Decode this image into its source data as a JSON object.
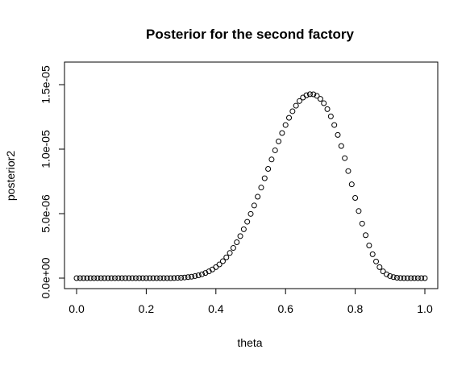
{
  "chart_data": {
    "type": "scatter",
    "title": "Posterior for the second factory",
    "xlabel": "theta",
    "ylabel": "posterior2",
    "xlim": [
      0.0,
      1.0
    ],
    "ylim": [
      0.0,
      1.55e-05
    ],
    "x_ticks": [
      0.0,
      0.2,
      0.4,
      0.6,
      0.8,
      1.0
    ],
    "x_tick_labels": [
      "0.0",
      "0.2",
      "0.4",
      "0.6",
      "0.8",
      "1.0"
    ],
    "y_ticks": [
      0.0,
      5e-06,
      1e-05,
      1.5e-05
    ],
    "y_tick_labels": [
      "0.0e+00",
      "5.0e-06",
      "1.0e-05",
      "1.5e-05"
    ],
    "series": [
      {
        "x": [
          0.0,
          0.01,
          0.02,
          0.03,
          0.04,
          0.05,
          0.06,
          0.07,
          0.08,
          0.09,
          0.1,
          0.11,
          0.12,
          0.13,
          0.14,
          0.15,
          0.16,
          0.17,
          0.18,
          0.19,
          0.2,
          0.21,
          0.22,
          0.23,
          0.24,
          0.25,
          0.26,
          0.27,
          0.28,
          0.29,
          0.3,
          0.31,
          0.32,
          0.33,
          0.34,
          0.35,
          0.36,
          0.37,
          0.38,
          0.39,
          0.4,
          0.41,
          0.42,
          0.43,
          0.44,
          0.45,
          0.46,
          0.47,
          0.48,
          0.49,
          0.5,
          0.51,
          0.52,
          0.53,
          0.54,
          0.55,
          0.56,
          0.57,
          0.58,
          0.59,
          0.6,
          0.61,
          0.62,
          0.63,
          0.64,
          0.65,
          0.66,
          0.67,
          0.68,
          0.69,
          0.7,
          0.71,
          0.72,
          0.73,
          0.74,
          0.75,
          0.76,
          0.77,
          0.78,
          0.79,
          0.8,
          0.81,
          0.82,
          0.83,
          0.84,
          0.85,
          0.86,
          0.87,
          0.88,
          0.89,
          0.9,
          0.91,
          0.92,
          0.93,
          0.94,
          0.95,
          0.96,
          0.97,
          0.98,
          0.99,
          1.0
        ],
        "y": [
          0,
          0,
          0,
          0,
          0,
          0,
          0,
          0,
          0,
          0,
          0,
          0,
          0,
          0,
          0,
          0,
          0,
          0,
          0,
          0,
          0,
          0,
          0,
          0,
          0,
          0,
          0,
          0,
          1e-08,
          2e-08,
          3e-08,
          5e-08,
          8e-08,
          1.1e-07,
          1.6e-07,
          2.2e-07,
          3e-07,
          4e-07,
          5.2e-07,
          6.7e-07,
          8.5e-07,
          1.06e-06,
          1.31e-06,
          1.61e-06,
          1.95e-06,
          2.34e-06,
          2.78e-06,
          3.26e-06,
          3.79e-06,
          4.37e-06,
          4.98e-06,
          5.63e-06,
          6.31e-06,
          7.02e-06,
          7.74e-06,
          8.47e-06,
          9.2e-06,
          9.91e-06,
          1.06e-05,
          1.125e-05,
          1.187e-05,
          1.243e-05,
          1.294e-05,
          1.337e-05,
          1.373e-05,
          1.4e-05,
          1.418e-05,
          1.426e-05,
          1.425e-05,
          1.413e-05,
          1.39e-05,
          1.356e-05,
          1.31e-05,
          1.254e-05,
          1.187e-05,
          1.11e-05,
          1.024e-05,
          9.3e-06,
          8.3e-06,
          7.27e-06,
          6.22e-06,
          5.2e-06,
          4.23e-06,
          3.33e-06,
          2.53e-06,
          1.85e-06,
          1.29e-06,
          8.5e-07,
          5.2e-07,
          3e-07,
          1.6e-07,
          8e-08,
          3e-08,
          1e-08,
          0,
          0,
          0,
          0,
          0,
          0,
          0
        ]
      }
    ]
  }
}
